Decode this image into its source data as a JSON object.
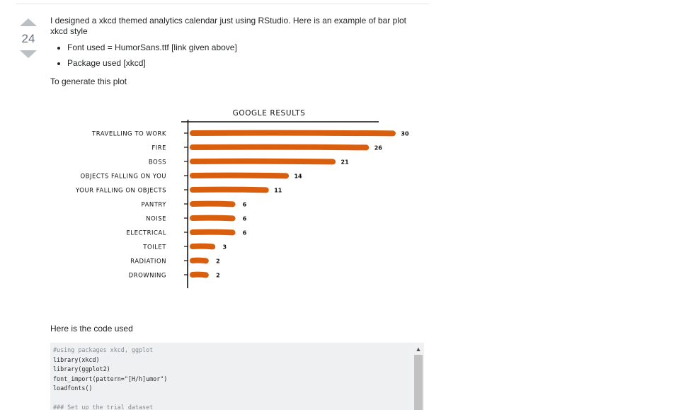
{
  "votes": {
    "count": "24"
  },
  "post": {
    "intro": "I designed a xkcd themed analytics calendar just using RStudio. Here is an example of bar plot xkcd style",
    "bullets": [
      "Font used = HumorSans.ttf [link given above]",
      "Package used [xkcd]"
    ],
    "generate_text": "To generate this plot",
    "code_caption": "Here is the code used"
  },
  "chart_data": {
    "type": "bar",
    "orientation": "horizontal",
    "title": "GOOGLE RESULTS",
    "categories": [
      "TRAVELLING TO WORK",
      "FIRE",
      "BOSS",
      "OBJECTS FALLING ON YOU",
      "YOUR FALLING ON OBJECTS",
      "PANTRY",
      "NOISE",
      "ELECTRICAL",
      "TOILET",
      "RADIATION",
      "DROWNING"
    ],
    "values": [
      30,
      26,
      21,
      14,
      11,
      6,
      6,
      6,
      3,
      2,
      2
    ],
    "bar_color": "#d95f0e",
    "xlim": [
      0,
      32
    ]
  },
  "code": {
    "lines": [
      {
        "text": "#using packages xkcd, ggplot",
        "comment": true
      },
      {
        "text": "library(xkcd)",
        "comment": false
      },
      {
        "text": "library(ggplot2)",
        "comment": false
      },
      {
        "text": "font_import(pattern=\"[H/h]umor\")",
        "comment": false
      },
      {
        "text": "loadfonts()",
        "comment": false
      },
      {
        "text": "",
        "comment": false
      },
      {
        "text": "### Set up the trial dataset",
        "comment": true
      }
    ]
  },
  "colors": {
    "arrow": "#bbc0c4",
    "code_bg": "#eff0f1"
  },
  "icons": {
    "upvote": "triangle-up",
    "downvote": "triangle-down",
    "scroll_up": "chevron-up"
  }
}
